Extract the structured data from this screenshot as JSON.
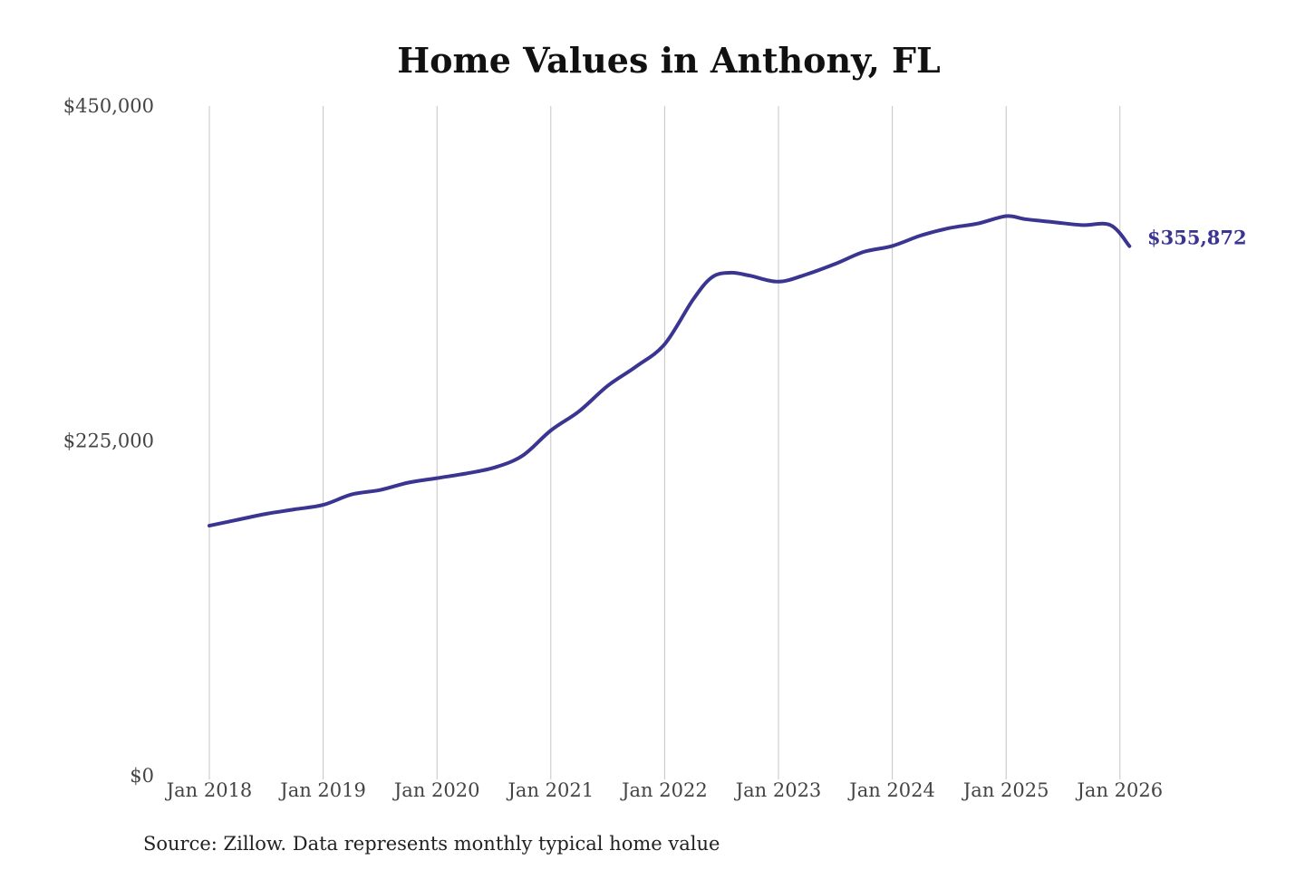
{
  "chart_data": {
    "type": "line",
    "title": "Home Values in Anthony, FL",
    "xlabel": "",
    "ylabel": "",
    "ylim": [
      0,
      450000
    ],
    "yticks": [
      {
        "value": 0,
        "label": "$0"
      },
      {
        "value": 225000,
        "label": "$225,000"
      },
      {
        "value": 450000,
        "label": "$450,000"
      }
    ],
    "xlim": [
      "2018-01",
      "2026-02"
    ],
    "xticks": [
      {
        "value": "2018-01",
        "label": "Jan 2018"
      },
      {
        "value": "2019-01",
        "label": "Jan 2019"
      },
      {
        "value": "2020-01",
        "label": "Jan 2020"
      },
      {
        "value": "2021-01",
        "label": "Jan 2021"
      },
      {
        "value": "2022-01",
        "label": "Jan 2022"
      },
      {
        "value": "2023-01",
        "label": "Jan 2023"
      },
      {
        "value": "2024-01",
        "label": "Jan 2024"
      },
      {
        "value": "2025-01",
        "label": "Jan 2025"
      },
      {
        "value": "2026-01",
        "label": "Jan 2026"
      }
    ],
    "grid": {
      "vertical": true,
      "horizontal": false
    },
    "line_color": "#3a3591",
    "series": [
      {
        "x": [
          "2018-01",
          "2018-04",
          "2018-07",
          "2018-10",
          "2019-01",
          "2019-04",
          "2019-07",
          "2019-10",
          "2020-01",
          "2020-04",
          "2020-07",
          "2020-10",
          "2021-01",
          "2021-04",
          "2021-07",
          "2021-10",
          "2022-01",
          "2022-04",
          "2022-06",
          "2022-08",
          "2022-10",
          "2023-01",
          "2023-04",
          "2023-07",
          "2023-10",
          "2024-01",
          "2024-04",
          "2024-07",
          "2024-10",
          "2025-01",
          "2025-03",
          "2025-06",
          "2025-09",
          "2025-12",
          "2026-02"
        ],
        "values": [
          168000,
          172000,
          176000,
          179000,
          182000,
          189000,
          192000,
          197000,
          200000,
          203000,
          207000,
          215000,
          232000,
          245000,
          262000,
          275000,
          290000,
          320000,
          335000,
          338000,
          336000,
          332000,
          337000,
          344000,
          352000,
          356000,
          363000,
          368000,
          371000,
          376000,
          374000,
          372000,
          370000,
          370000,
          355872
        ]
      }
    ],
    "end_label": "$355,872",
    "source": "Source: Zillow. Data represents monthly typical home value"
  }
}
